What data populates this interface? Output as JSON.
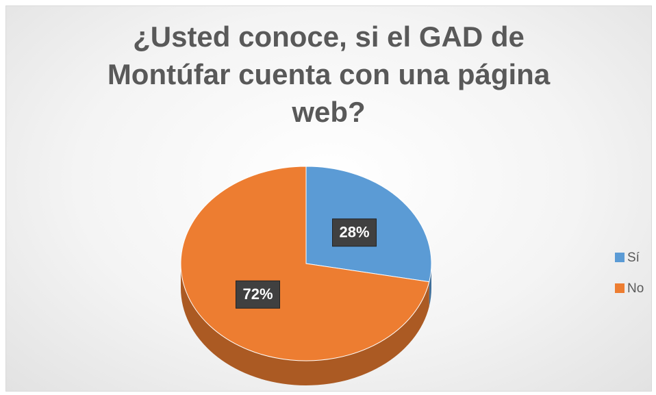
{
  "chart_data": {
    "type": "pie",
    "title": "¿Usted conoce, si el GAD de Montúfar cuenta con una página web?",
    "categories": [
      "Sí",
      "No"
    ],
    "values": [
      28,
      72
    ],
    "value_labels": [
      "28%",
      "72%"
    ],
    "colors": [
      "#5b9bd5",
      "#ed7d31"
    ],
    "legend": "right"
  }
}
